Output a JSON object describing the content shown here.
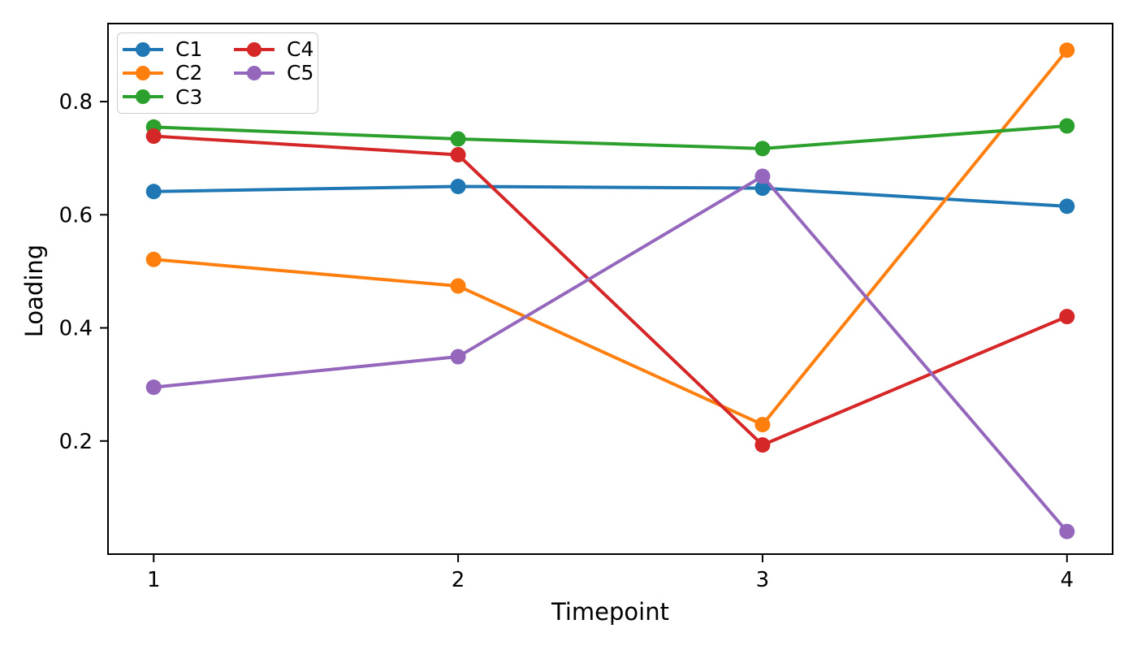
{
  "chart_data": {
    "type": "line",
    "title": "",
    "xlabel": "Timepoint",
    "ylabel": "Loading",
    "x": [
      1,
      2,
      3,
      4
    ],
    "series": [
      {
        "name": "C1",
        "color": "#1f77b4",
        "values": [
          0.641,
          0.65,
          0.647,
          0.615
        ]
      },
      {
        "name": "C2",
        "color": "#ff7f0e",
        "values": [
          0.521,
          0.474,
          0.229,
          0.891
        ]
      },
      {
        "name": "C3",
        "color": "#2ca02c",
        "values": [
          0.755,
          0.734,
          0.717,
          0.757
        ]
      },
      {
        "name": "C4",
        "color": "#d62728",
        "values": [
          0.739,
          0.706,
          0.193,
          0.42
        ]
      },
      {
        "name": "C5",
        "color": "#9467bd",
        "values": [
          0.295,
          0.349,
          0.668,
          0.04
        ]
      }
    ],
    "xticks": [
      1,
      2,
      3,
      4
    ],
    "yticks": [
      0.2,
      0.4,
      0.6,
      0.8
    ],
    "xtick_labels": [
      "1",
      "2",
      "3",
      "4"
    ],
    "ytick_labels": [
      "0.2",
      "0.4",
      "0.6",
      "0.8"
    ],
    "xlim": [
      0.85,
      4.15
    ],
    "ylim": [
      0.0,
      0.938
    ],
    "grid": false,
    "legend": {
      "position": "upper-left",
      "columns": 2,
      "entries": [
        "C1",
        "C2",
        "C3",
        "C4",
        "C5"
      ]
    },
    "axis_color": "#000000",
    "background": "#ffffff",
    "line_width": 4,
    "marker": "circle",
    "marker_radius": 9.5
  }
}
